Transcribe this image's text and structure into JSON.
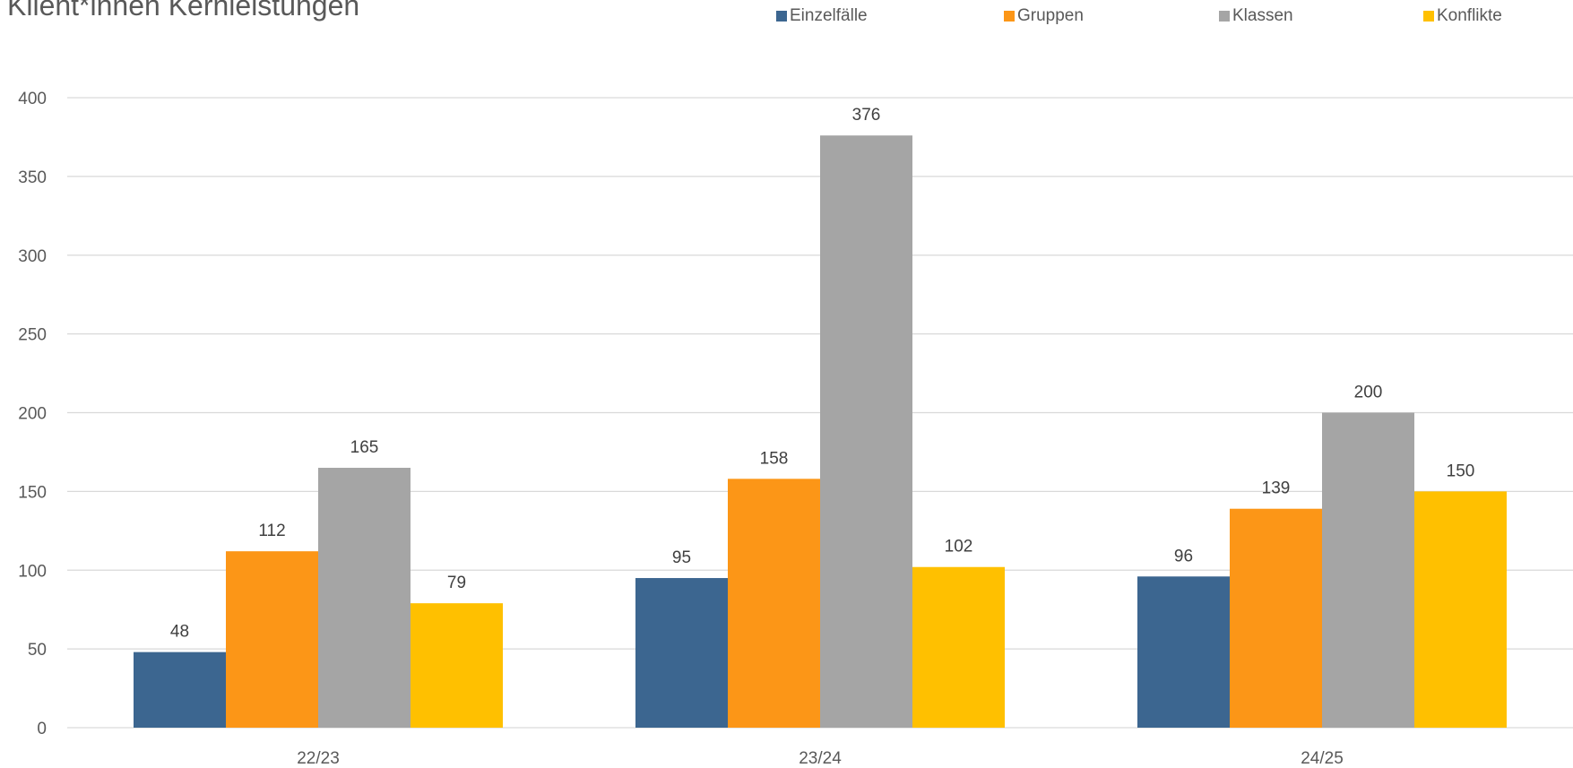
{
  "chart_data": {
    "type": "bar",
    "title": "Klient*innen Kernleistungen",
    "xlabel": "",
    "ylabel": "",
    "categories": [
      "22/23",
      "23/24",
      "24/25"
    ],
    "series": [
      {
        "name": "Einzelfälle",
        "color": "#3c6690",
        "values": [
          48,
          95,
          96
        ]
      },
      {
        "name": "Gruppen",
        "color": "#fc9617",
        "values": [
          112,
          158,
          139
        ]
      },
      {
        "name": "Klassen",
        "color": "#a5a5a5",
        "values": [
          165,
          376,
          200
        ]
      },
      {
        "name": "Konflikte",
        "color": "#ffc000",
        "values": [
          79,
          102,
          150
        ]
      }
    ],
    "ylim": [
      0,
      400
    ],
    "yticks": [
      0,
      50,
      100,
      150,
      200,
      250,
      300,
      350,
      400
    ],
    "grid": true,
    "legend_position": "top-right",
    "gridline_color": "#d9d9d9",
    "text_color": "#595959"
  }
}
